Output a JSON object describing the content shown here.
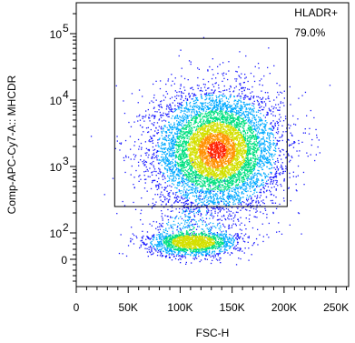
{
  "chart_data": {
    "type": "scatter",
    "subtype": "flow-cytometry-density-dot-plot",
    "xlabel": "FSC-H",
    "ylabel": "Comp-APC-Cy7-A:: MHCDR",
    "x_scale": "linear",
    "y_scale": "biexponential",
    "xlim": [
      0,
      262144
    ],
    "x_ticks": [
      {
        "value": 0,
        "label": "0"
      },
      {
        "value": 50000,
        "label": "50K"
      },
      {
        "value": 100000,
        "label": "100K"
      },
      {
        "value": 150000,
        "label": "150K"
      },
      {
        "value": 200000,
        "label": "200K"
      },
      {
        "value": 250000,
        "label": "250K"
      }
    ],
    "y_ticks": [
      {
        "value": 0,
        "label": "0",
        "exp": ""
      },
      {
        "value": 100,
        "label": "10",
        "exp": "2"
      },
      {
        "value": 1000,
        "label": "10",
        "exp": "3"
      },
      {
        "value": 10000,
        "label": "10",
        "exp": "4"
      },
      {
        "value": 100000,
        "label": "10",
        "exp": "5"
      }
    ],
    "populations": [
      {
        "center_x": 135000,
        "center_log10_y": 3.25,
        "spread_x": 30000,
        "spread_log10_y": 0.45,
        "fraction": 0.79
      },
      {
        "center_x": 112000,
        "center_log10_y": 1.35,
        "spread_x": 22000,
        "spread_log10_y": 0.55,
        "fraction": 0.21
      }
    ],
    "gate": {
      "name": "HLADR+",
      "percent": "79.0%",
      "x_range": [
        37000,
        203000
      ],
      "y_range": [
        250,
        85000
      ]
    },
    "density_colors": [
      "#1a1aff",
      "#00aaff",
      "#00e080",
      "#d4e000",
      "#ff9000",
      "#ff2000"
    ],
    "grid": false,
    "legend": "none"
  }
}
